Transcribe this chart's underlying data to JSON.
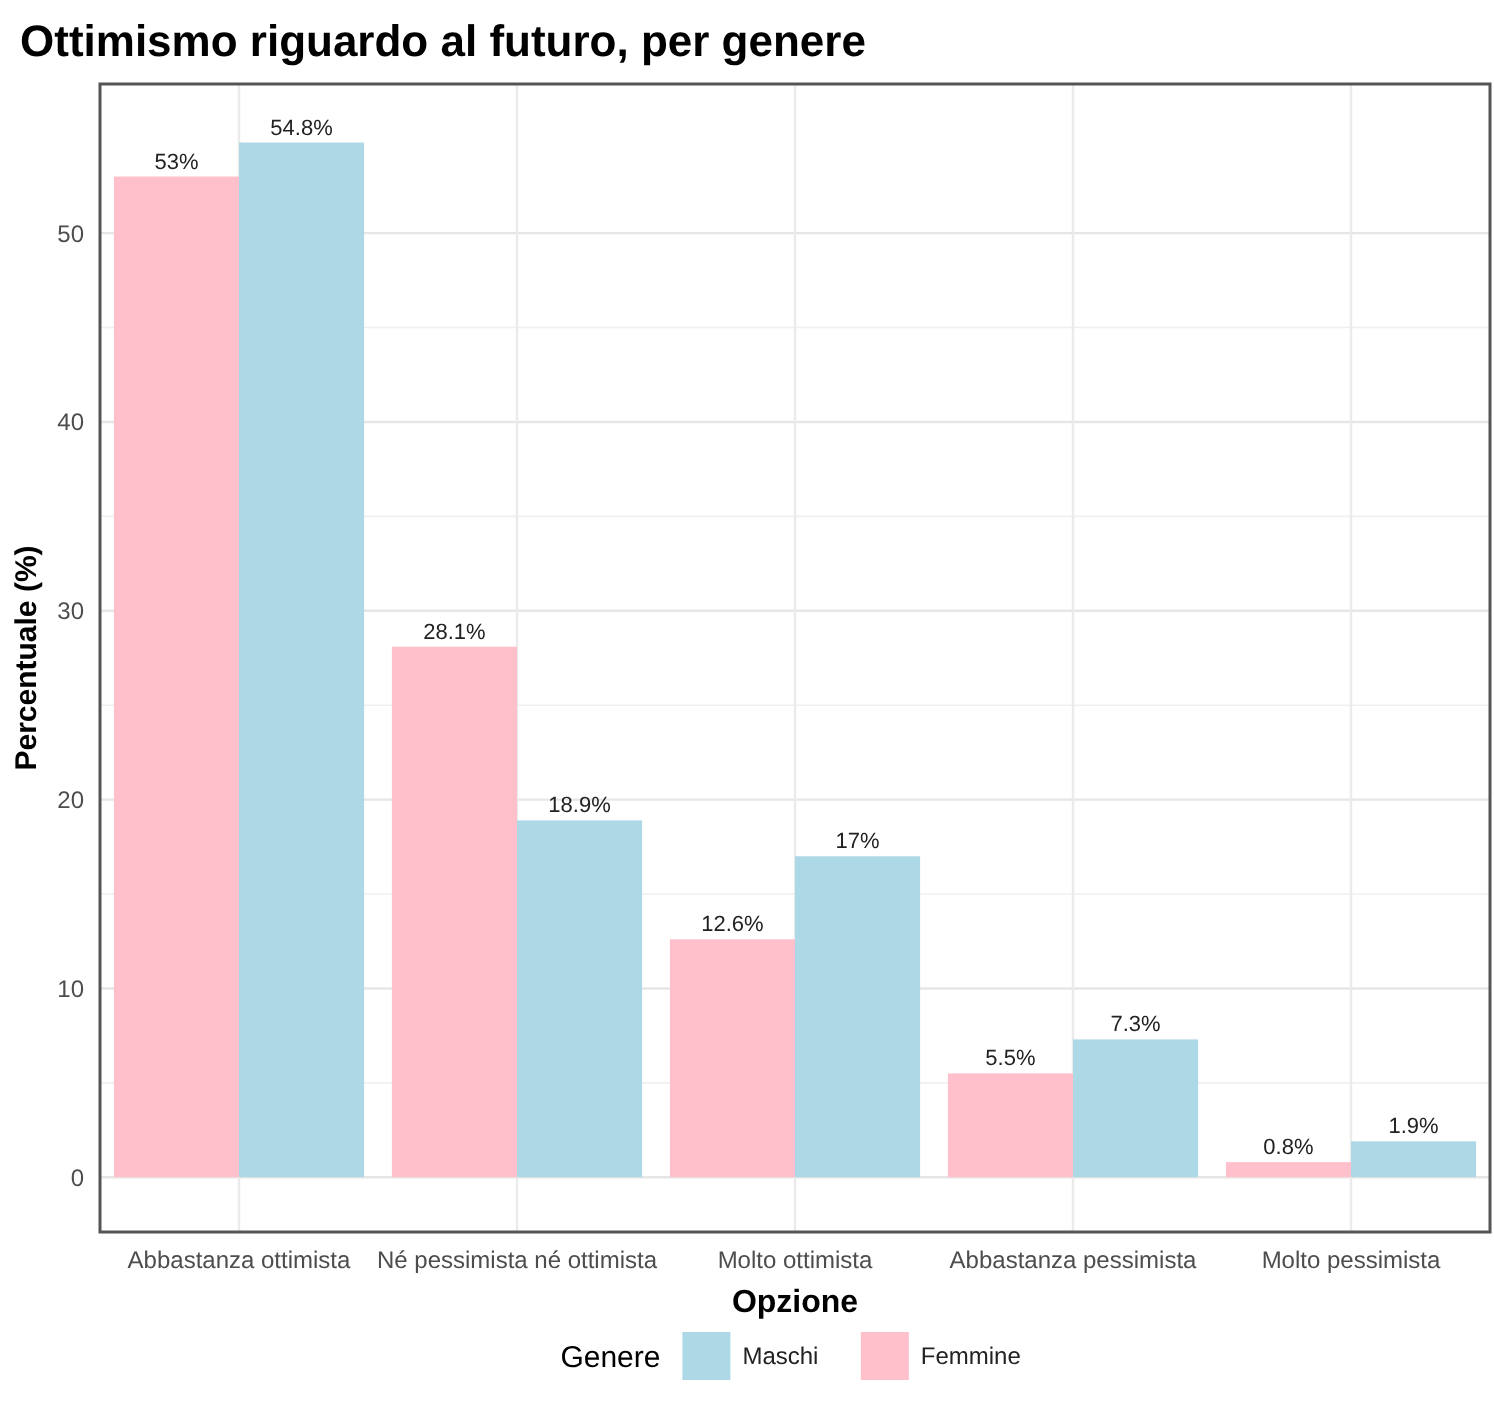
{
  "chart_data": {
    "type": "bar",
    "title": "Ottimismo riguardo al futuro, per genere",
    "xlabel": "Opzione",
    "ylabel": "Percentuale (%)",
    "legend_title": "Genere",
    "categories": [
      "Abbastanza ottimista",
      "Né pessimista né ottimista",
      "Molto ottimista",
      "Abbastanza pessimista",
      "Molto pessimista"
    ],
    "series": [
      {
        "name": "Maschi",
        "color": "#add8e6",
        "values": [
          54.8,
          18.9,
          17,
          7.3,
          1.9
        ],
        "value_labels": [
          "54.8%",
          "18.9%",
          "17%",
          "7.3%",
          "1.9%"
        ]
      },
      {
        "name": "Femmine",
        "color": "#ffc0cb",
        "values": [
          53,
          28.1,
          12.6,
          5.5,
          0.8
        ],
        "value_labels": [
          "53%",
          "28.1%",
          "12.6%",
          "5.5%",
          "0.8%"
        ]
      }
    ],
    "ylim": [
      -2.9,
      57.9
    ],
    "yticks": [
      0,
      10,
      20,
      30,
      40,
      50
    ],
    "grid": true,
    "legend": "bottom"
  }
}
